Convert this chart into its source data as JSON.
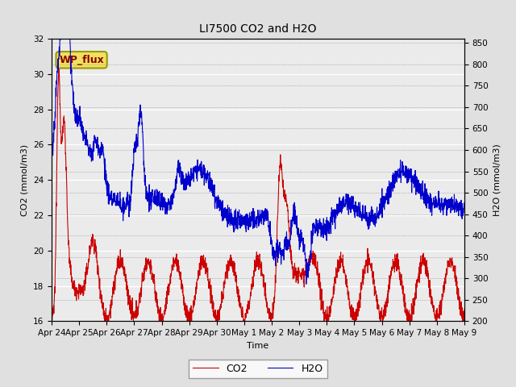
{
  "title": "LI7500 CO2 and H2O",
  "xlabel": "Time",
  "ylabel_left": "CO2 (mmol/m3)",
  "ylabel_right": "H2O (mmol/m3)",
  "co2_color": "#CC0000",
  "h2o_color": "#0000CC",
  "ylim_left": [
    16,
    32
  ],
  "ylim_right": [
    200,
    860
  ],
  "yticks_left": [
    16,
    18,
    20,
    22,
    24,
    26,
    28,
    30,
    32
  ],
  "yticks_right": [
    200,
    250,
    300,
    350,
    400,
    450,
    500,
    550,
    600,
    650,
    700,
    750,
    800,
    850
  ],
  "plot_bg_color": "#EBEBEB",
  "fig_bg_color": "#E0E0E0",
  "annotation_text": "WP_flux",
  "x_tick_labels": [
    "Apr 24",
    "Apr 25",
    "Apr 26",
    "Apr 27",
    "Apr 28",
    "Apr 29",
    "Apr 30",
    "May 1",
    "May 2",
    "May 3",
    "May 4",
    "May 5",
    "May 6",
    "May 7",
    "May 8",
    "May 9"
  ],
  "title_fontsize": 10,
  "label_fontsize": 8,
  "tick_fontsize": 7.5,
  "legend_fontsize": 9
}
